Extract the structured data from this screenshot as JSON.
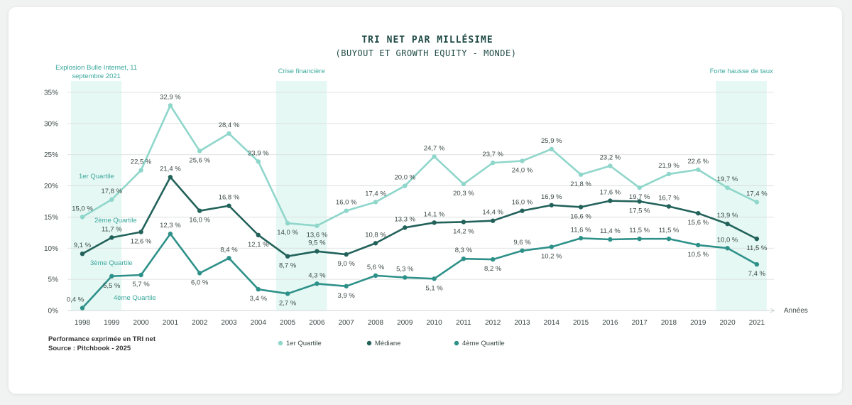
{
  "chart_data": {
    "type": "line",
    "title": "TRI NET PAR MILLÉSIME",
    "subtitle": "(BUYOUT ET GROWTH EQUITY - MONDE)",
    "xlabel": "Années",
    "ylabel": "",
    "ylim": [
      0,
      35
    ],
    "y_ticks": [
      "0%",
      "5%",
      "10%",
      "15%",
      "20%",
      "25%",
      "30%",
      "35%"
    ],
    "x": [
      "1998",
      "1999",
      "2000",
      "2001",
      "2002",
      "2003",
      "2004",
      "2005",
      "2006",
      "2007",
      "2008",
      "2009",
      "2010",
      "2011",
      "2012",
      "2013",
      "2014",
      "2015",
      "2016",
      "2017",
      "2018",
      "2019",
      "2020",
      "2021"
    ],
    "grid": true,
    "legend_position": "bottom",
    "series": [
      {
        "name": "1er Quartile",
        "color": "#8fd6cb",
        "values": [
          15.0,
          17.8,
          22.5,
          32.9,
          25.6,
          28.4,
          23.9,
          14.0,
          13.6,
          16.0,
          17.4,
          20.0,
          24.7,
          20.3,
          23.7,
          24.0,
          25.9,
          21.8,
          23.2,
          19.7,
          21.9,
          22.6,
          19.7,
          17.4
        ],
        "labels": [
          "15,0 %",
          "17,8 %",
          "22,5 %",
          "32,9 %",
          "25,6 %",
          "28,4 %",
          "23,9 %",
          "14,0 %",
          "13,6 %",
          "16,0 %",
          "17,4 %",
          "20,0 %",
          "24,7 %",
          "20,3 %",
          "23,7 %",
          "24,0 %",
          "25,9 %",
          "21,8 %",
          "23,2 %",
          "19,7 %",
          "21,9 %",
          "22,6 %",
          "19,7 %",
          "17,4 %"
        ]
      },
      {
        "name": "Médiane",
        "color": "#22625a",
        "values": [
          9.1,
          11.7,
          12.6,
          21.4,
          16.0,
          16.8,
          12.1,
          8.7,
          9.5,
          9.0,
          10.8,
          13.3,
          14.1,
          14.2,
          14.4,
          16.0,
          16.9,
          16.6,
          17.6,
          17.5,
          16.7,
          15.6,
          13.9,
          11.5
        ],
        "labels": [
          "9,1 %",
          "11,7 %",
          "12,6 %",
          "21,4 %",
          "16,0 %",
          "16,8 %",
          "12,1 %",
          "8,7 %",
          "9,5 %",
          "9,0 %",
          "10,8 %",
          "13,3 %",
          "14,1 %",
          "14,2 %",
          "14,4 %",
          "16,0 %",
          "16,9 %",
          "16,6 %",
          "17,6 %",
          "17,5 %",
          "16,7 %",
          "15,6 %",
          "13,9 %",
          "11,5 %"
        ]
      },
      {
        "name": "4ème Quartile",
        "color": "#2e9189",
        "values": [
          0.4,
          5.5,
          5.7,
          12.3,
          6.0,
          8.4,
          3.4,
          2.7,
          4.3,
          3.9,
          5.6,
          5.3,
          5.1,
          8.3,
          8.2,
          9.6,
          10.2,
          11.6,
          11.4,
          11.5,
          11.5,
          10.5,
          10.0,
          7.4
        ],
        "labels": [
          "0,4 %",
          "5,5 %",
          "5,7 %",
          "12,3 %",
          "6,0 %",
          "8,4 %",
          "3,4 %",
          "2,7 %",
          "4,3 %",
          "3,9 %",
          "5,6 %",
          "5,3 %",
          "5,1 %",
          "8,3 %",
          "8,2 %",
          "9,6 %",
          "10,2 %",
          "11,6 %",
          "11,4 %",
          "11,5 %",
          "11,5 %",
          "10,5 %",
          "10,0 %",
          "7,4 %"
        ]
      }
    ],
    "line_annotations": [
      "1er Quartile",
      "2ème Quartile",
      "3ème Quartile",
      "4ème Quartile"
    ],
    "bands": [
      {
        "label": "Explosion Bulle Internet, 11 septembre 2021",
        "from": "1998",
        "to": "1999"
      },
      {
        "label": "Crise financière",
        "from": "2005",
        "to": "2006"
      },
      {
        "label": "Forte hausse de taux",
        "from": "2020",
        "to": "2021"
      }
    ],
    "legend": [
      "1er Quartile",
      "Médiane",
      "4ème Quartile"
    ],
    "footnotes": [
      "Performance exprimée en TRI net",
      "Source : Pitchbook - 2025"
    ]
  }
}
